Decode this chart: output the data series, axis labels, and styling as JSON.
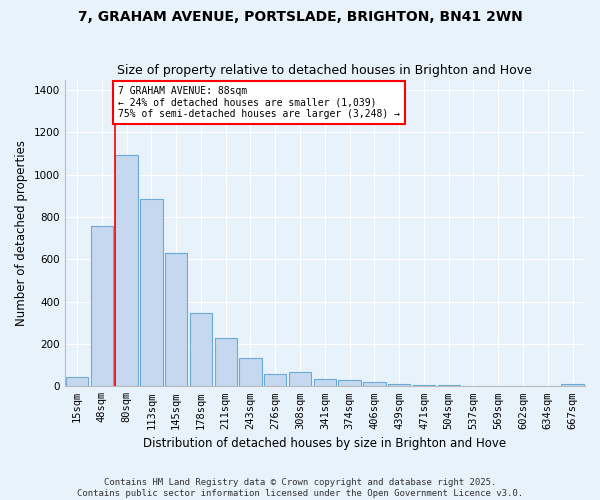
{
  "title": "7, GRAHAM AVENUE, PORTSLADE, BRIGHTON, BN41 2WN",
  "subtitle": "Size of property relative to detached houses in Brighton and Hove",
  "xlabel": "Distribution of detached houses by size in Brighton and Hove",
  "ylabel": "Number of detached properties",
  "categories": [
    "15sqm",
    "48sqm",
    "80sqm",
    "113sqm",
    "145sqm",
    "178sqm",
    "211sqm",
    "243sqm",
    "276sqm",
    "308sqm",
    "341sqm",
    "374sqm",
    "406sqm",
    "439sqm",
    "471sqm",
    "504sqm",
    "537sqm",
    "569sqm",
    "602sqm",
    "634sqm",
    "667sqm"
  ],
  "values": [
    45,
    760,
    1095,
    885,
    630,
    345,
    230,
    135,
    60,
    68,
    35,
    30,
    20,
    10,
    8,
    5,
    2,
    0,
    0,
    2,
    10
  ],
  "bar_color": "#c5d8f0",
  "bar_edge_color": "#6baad8",
  "background_color": "#e8f2fb",
  "grid_color": "#ffffff",
  "red_line_index": 2,
  "annotation_text": "7 GRAHAM AVENUE: 88sqm\n← 24% of detached houses are smaller (1,039)\n75% of semi-detached houses are larger (3,248) →",
  "annotation_box_color": "white",
  "annotation_box_edge_color": "red",
  "ylim": [
    0,
    1450
  ],
  "yticks": [
    0,
    200,
    400,
    600,
    800,
    1000,
    1200,
    1400
  ],
  "footer": "Contains HM Land Registry data © Crown copyright and database right 2025.\nContains public sector information licensed under the Open Government Licence v3.0.",
  "title_fontsize": 10,
  "subtitle_fontsize": 9,
  "axis_label_fontsize": 8.5,
  "tick_fontsize": 7.5,
  "footer_fontsize": 6.5
}
